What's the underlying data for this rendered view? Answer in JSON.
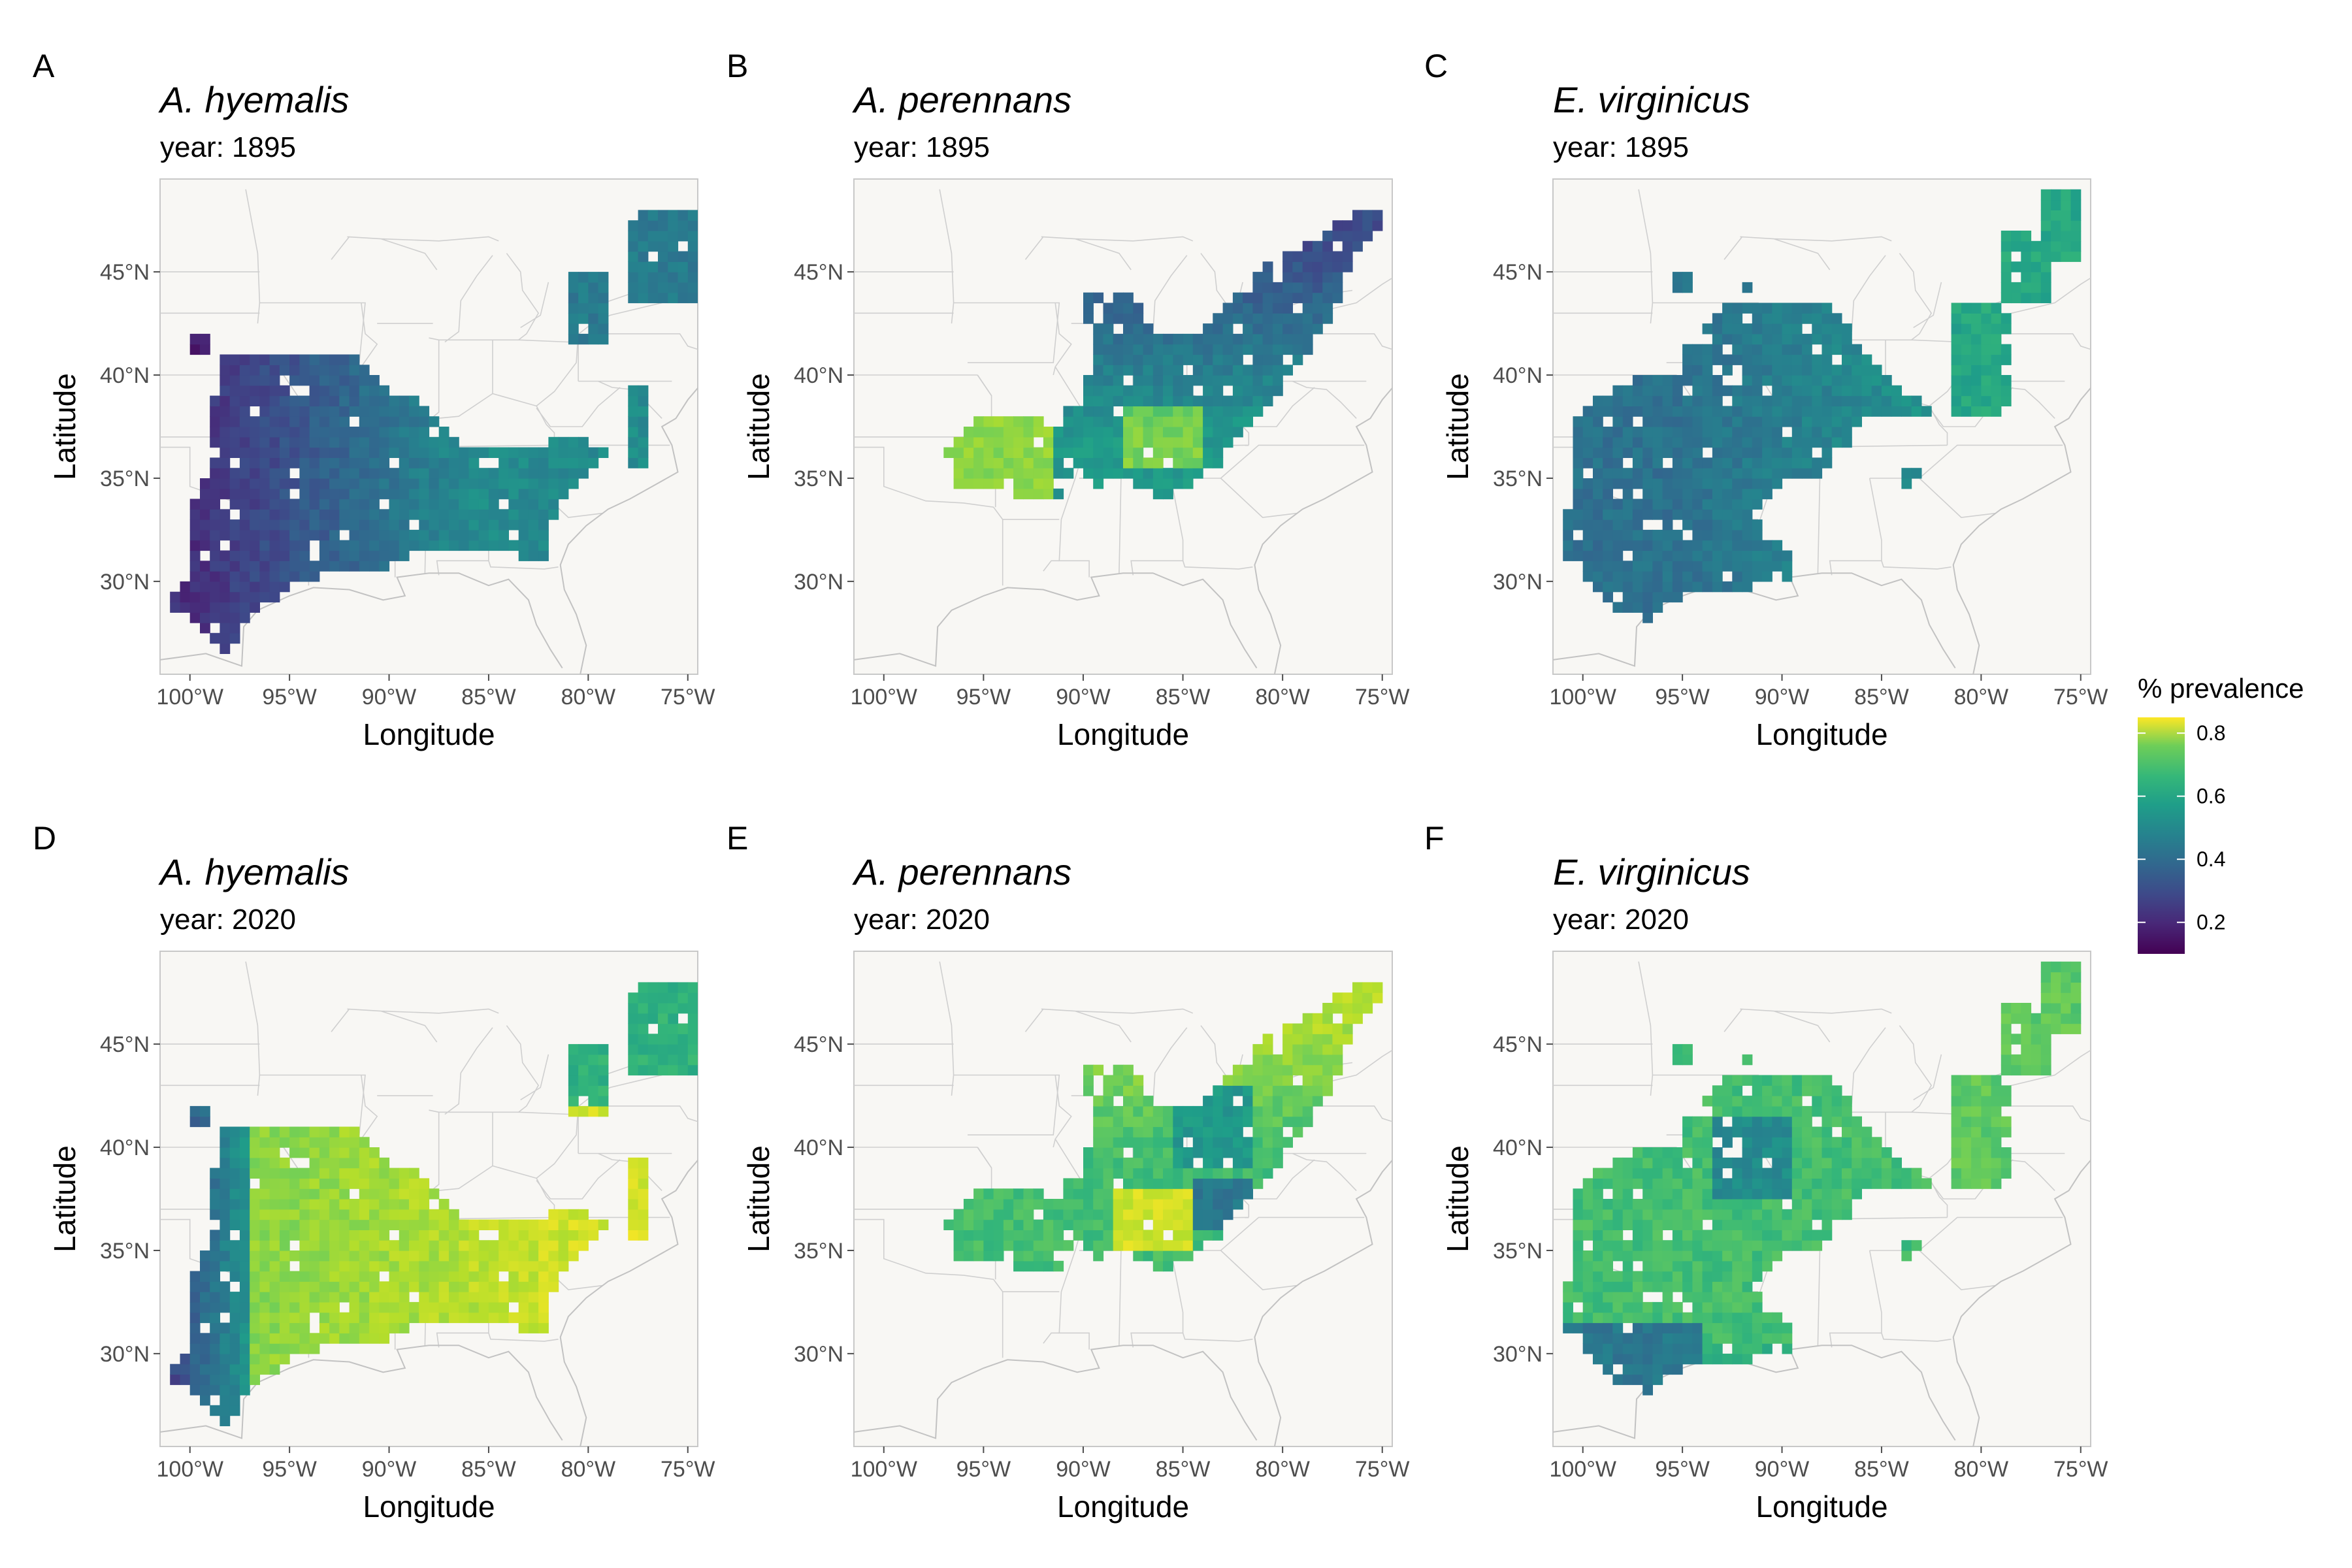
{
  "figure": {
    "legend": {
      "title": "% prevalence",
      "ticks": [
        "0.2",
        "0.4",
        "0.6",
        "0.8"
      ],
      "tick_values": [
        0.2,
        0.4,
        0.6,
        0.8
      ],
      "range": [
        0.1,
        0.85
      ],
      "colormap": "viridis"
    },
    "colors": {
      "background": "#f8f7f4",
      "border": "#c8c8c8",
      "state_lines": "#cfcfcf"
    },
    "axes": {
      "x_title": "Longitude",
      "y_title": "Latitude",
      "x_ticks": [
        "100°W",
        "95°W",
        "90°W",
        "85°W",
        "80°W",
        "75°W"
      ],
      "x_tick_values": [
        -100,
        -95,
        -90,
        -85,
        -80,
        -75
      ],
      "y_ticks": [
        "30°N",
        "35°N",
        "40°N",
        "45°N"
      ],
      "y_tick_values": [
        30,
        35,
        40,
        45
      ],
      "xlim": [
        -101.5,
        -74.5
      ],
      "ylim": [
        25.5,
        49.5
      ]
    },
    "panels": [
      {
        "letter": "A",
        "species": "A. hyemalis",
        "year": "year: 1895",
        "shape": "hyemalis",
        "trend": "early"
      },
      {
        "letter": "B",
        "species": "A. perennans",
        "year": "year: 1895",
        "shape": "perennans",
        "trend": "early"
      },
      {
        "letter": "C",
        "species": "E. virginicus",
        "year": "year: 1895",
        "shape": "virginicus",
        "trend": "early"
      },
      {
        "letter": "D",
        "species": "A. hyemalis",
        "year": "year: 2020",
        "shape": "hyemalis",
        "trend": "late"
      },
      {
        "letter": "E",
        "species": "A. perennans",
        "year": "year: 2020",
        "shape": "perennans",
        "trend": "late"
      },
      {
        "letter": "F",
        "species": "E. virginicus",
        "year": "year: 2020",
        "shape": "virginicus",
        "trend": "late"
      }
    ]
  }
}
